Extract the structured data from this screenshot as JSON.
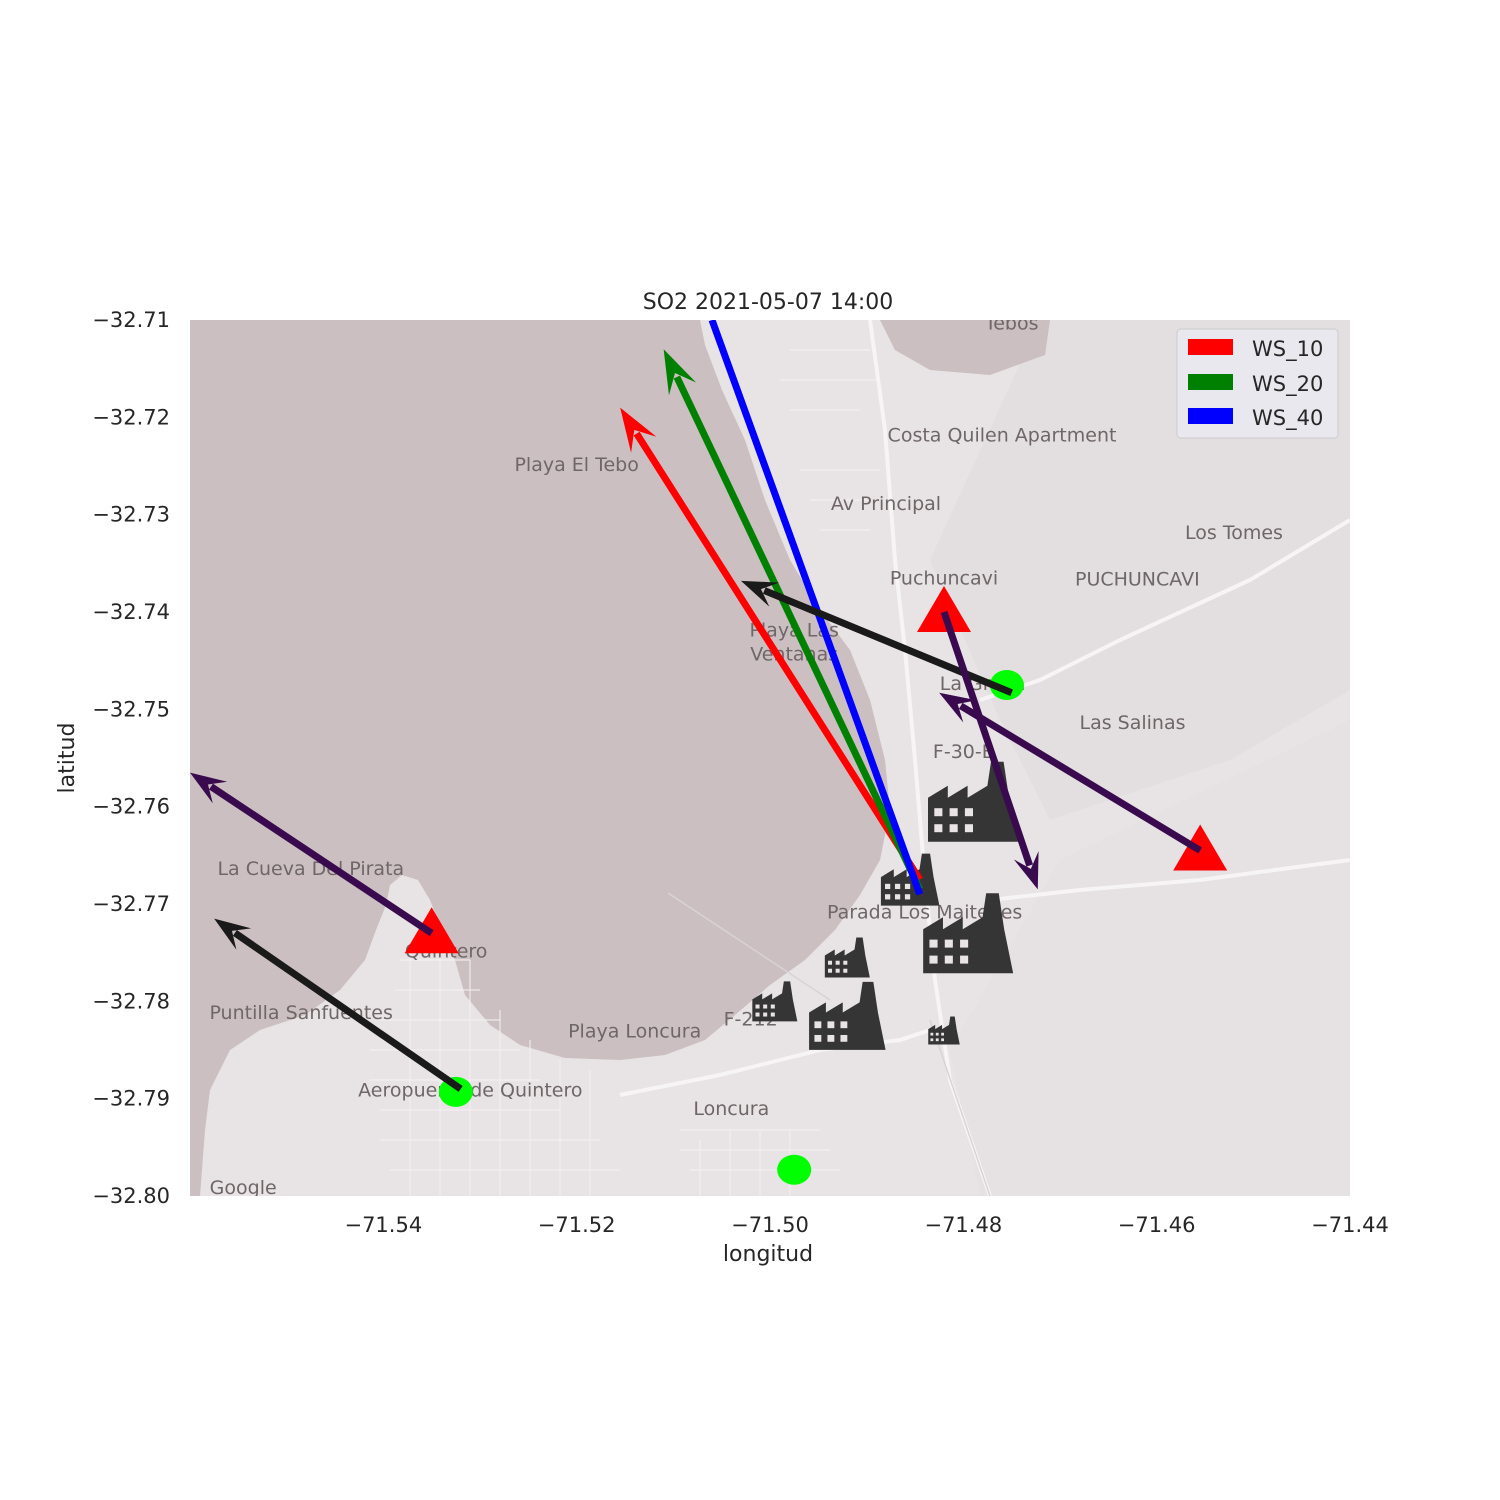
{
  "chart_data": {
    "type": "scatter",
    "title": "SO2 2021-05-07 14:00",
    "xlabel": "longitud",
    "ylabel": "latitud",
    "xlim": [
      -71.56,
      -71.44
    ],
    "ylim": [
      -32.8,
      -32.71
    ],
    "xticks": [
      -71.54,
      -71.52,
      -71.5,
      -71.48,
      -71.46,
      -71.44
    ],
    "xtick_labels": [
      "−71.54",
      "−71.52",
      "−71.50",
      "−71.48",
      "−71.46",
      "−71.44"
    ],
    "yticks": [
      -32.71,
      -32.72,
      -32.73,
      -32.74,
      -32.75,
      -32.76,
      -32.77,
      -32.78,
      -32.79,
      -32.8
    ],
    "ytick_labels": [
      "−32.71",
      "−32.72",
      "−32.73",
      "−32.74",
      "−32.75",
      "−32.76",
      "−32.77",
      "−32.78",
      "−32.79",
      "−32.80"
    ],
    "grid": false,
    "legend_position": "top-right",
    "legend": [
      {
        "label": "WS_10",
        "color": "#ff0000"
      },
      {
        "label": "WS_20",
        "color": "#008000"
      },
      {
        "label": "WS_40",
        "color": "#0000ff"
      }
    ],
    "source_vectors": [
      {
        "label": "WS_10",
        "color": "#ff0000",
        "from": [
          -71.4845,
          -32.7675
        ],
        "to": [
          -71.5155,
          -32.719
        ],
        "head": true
      },
      {
        "label": "WS_20",
        "color": "#008000",
        "from": [
          -71.4845,
          -32.7685
        ],
        "to": [
          -71.511,
          -32.713
        ],
        "head": true
      },
      {
        "label": "WS_40",
        "color": "#0000ff",
        "from": [
          -71.4845,
          -32.769
        ],
        "to": [
          -71.506,
          -32.71
        ],
        "head": false
      }
    ],
    "station_wind_vectors": [
      {
        "color": "#1a1a1a",
        "from": [
          -71.475,
          -32.7483
        ],
        "to": [
          -71.503,
          -32.7368
        ]
      },
      {
        "color": "#1a1a1a",
        "from": [
          -71.532,
          -32.789
        ],
        "to": [
          -71.5575,
          -32.7715
        ]
      },
      {
        "color": "#3a0a4f",
        "from": [
          -71.482,
          -32.74
        ],
        "to": [
          -71.4723,
          -32.7685
        ]
      },
      {
        "color": "#3a0a4f",
        "from": [
          -71.4555,
          -32.7645
        ],
        "to": [
          -71.4825,
          -32.7483
        ]
      },
      {
        "color": "#3a0a4f",
        "from": [
          -71.535,
          -32.773
        ],
        "to": [
          -71.56,
          -32.7565
        ]
      }
    ],
    "stations_triangle": [
      {
        "x": -71.482,
        "y": -32.74,
        "color": "#ff0000"
      },
      {
        "x": -71.4555,
        "y": -32.7645,
        "color": "#ff0000"
      },
      {
        "x": -71.535,
        "y": -32.773,
        "color": "#ff0000"
      }
    ],
    "stations_circle": [
      {
        "x": -71.4755,
        "y": -32.7475,
        "color": "#00ff00"
      },
      {
        "x": -71.5325,
        "y": -32.7893,
        "color": "#00ff00"
      },
      {
        "x": -71.4975,
        "y": -32.7973,
        "color": "#00ff00"
      }
    ],
    "sources_factory": [
      {
        "x": -71.479,
        "y": -32.7595,
        "size": 1.0
      },
      {
        "x": -71.4855,
        "y": -32.7675,
        "size": 0.65
      },
      {
        "x": -71.4795,
        "y": -32.773,
        "size": 1.0
      },
      {
        "x": -71.492,
        "y": -32.7755,
        "size": 0.5
      },
      {
        "x": -71.4995,
        "y": -32.78,
        "size": 0.5
      },
      {
        "x": -71.492,
        "y": -32.7815,
        "size": 0.85
      },
      {
        "x": -71.482,
        "y": -32.783,
        "size": 0.35
      }
    ]
  },
  "map_labels": [
    {
      "text": "Tebos",
      "lon": -71.475,
      "lat": -32.711
    },
    {
      "text": "Costa Quilen Apartment",
      "lon": -71.476,
      "lat": -32.7225
    },
    {
      "text": "Playa El Tebo",
      "lon": -71.52,
      "lat": -32.7255
    },
    {
      "text": "Av Principal",
      "lon": -71.488,
      "lat": -32.7295
    },
    {
      "text": "Los Tomes",
      "lon": -71.452,
      "lat": -32.7325
    },
    {
      "text": "Puchuncavi",
      "lon": -71.482,
      "lat": -32.7372
    },
    {
      "text": "PUCHUNCAVI",
      "lon": -71.462,
      "lat": -32.7373
    },
    {
      "text": "Playa Las",
      "lon": -71.4975,
      "lat": -32.7425
    },
    {
      "text": "Ventanas",
      "lon": -71.4975,
      "lat": -32.745
    },
    {
      "text": "La Greda",
      "lon": -71.478,
      "lat": -32.748
    },
    {
      "text": "Las Salinas",
      "lon": -71.4625,
      "lat": -32.752
    },
    {
      "text": "F-30-E",
      "lon": -71.48,
      "lat": -32.755
    },
    {
      "text": "La Cueva Del Pirata",
      "lon": -71.5475,
      "lat": -32.767
    },
    {
      "text": "Parada Los Maitenes",
      "lon": -71.484,
      "lat": -32.7715
    },
    {
      "text": "Quintero",
      "lon": -71.5335,
      "lat": -32.7755
    },
    {
      "text": "Puntilla Sanfuentes",
      "lon": -71.5485,
      "lat": -32.7818
    },
    {
      "text": "F-212",
      "lon": -71.502,
      "lat": -32.7825
    },
    {
      "text": "Playa Loncura",
      "lon": -71.514,
      "lat": -32.7837
    },
    {
      "text": "Aeropuerto de Quintero",
      "lon": -71.531,
      "lat": -32.7898
    },
    {
      "text": "Loncura",
      "lon": -71.504,
      "lat": -32.7917
    },
    {
      "text": "Google",
      "lon": -71.5545,
      "lat": -32.7998
    }
  ]
}
